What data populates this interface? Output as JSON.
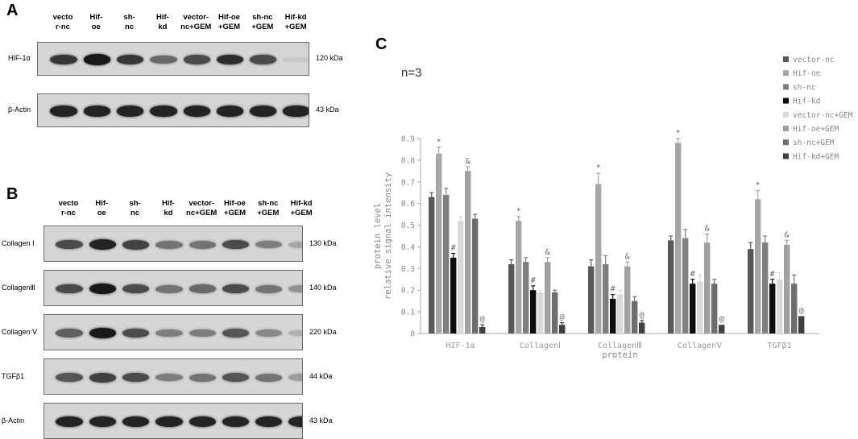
{
  "panel_a": {
    "letter": "A",
    "lanes": [
      "vecto\nr-nc",
      "Hif-\noe",
      "sh-\nnc",
      "Hif-\nkd",
      "vector-\nnc+GEM",
      "Hif-oe\n+GEM",
      "sh-nc\n+GEM",
      "Hif-kd\n+GEM"
    ],
    "blots": [
      {
        "label": "HIF-1α",
        "kda": "120 kDa",
        "intensity": [
          0.8,
          0.95,
          0.8,
          0.55,
          0.7,
          0.85,
          0.7,
          0.08
        ]
      },
      {
        "label": "β-Actin",
        "kda": "43 kDa",
        "intensity": [
          0.9,
          0.9,
          0.9,
          0.9,
          0.9,
          0.9,
          0.9,
          0.9
        ]
      }
    ]
  },
  "panel_b": {
    "letter": "B",
    "lanes": [
      "vecto\nr-nc",
      "Hif-\noe",
      "sh-\nnc",
      "Hif-\nkd",
      "vector-\nnc+GEM",
      "Hif-oe\n+GEM",
      "sh-nc\n+GEM",
      "Hif-kd\n+GEM"
    ],
    "blots": [
      {
        "label": "Collagen Ⅰ",
        "kda": "130 kDa",
        "intensity": [
          0.7,
          0.9,
          0.75,
          0.5,
          0.5,
          0.7,
          0.45,
          0.25
        ]
      },
      {
        "label": "CollagenⅢ",
        "kda": "140 kDa",
        "intensity": [
          0.7,
          0.95,
          0.7,
          0.5,
          0.55,
          0.7,
          0.5,
          0.35
        ]
      },
      {
        "label": "Collagen Ⅴ",
        "kda": "220 kDa",
        "intensity": [
          0.6,
          0.95,
          0.7,
          0.45,
          0.45,
          0.65,
          0.4,
          0.2
        ]
      },
      {
        "label": "TGFβ1",
        "kda": "44 kDa",
        "intensity": [
          0.65,
          0.75,
          0.7,
          0.45,
          0.5,
          0.65,
          0.5,
          0.3
        ]
      },
      {
        "label": "β-Actin",
        "kda": "43 kDa",
        "intensity": [
          0.9,
          0.9,
          0.9,
          0.9,
          0.9,
          0.9,
          0.9,
          0.9
        ]
      }
    ]
  },
  "panel_c": {
    "letter": "C",
    "note": "n=3"
  },
  "chart_data": {
    "type": "bar",
    "title": "",
    "xlabel": "protein",
    "ylabel_lines": [
      "protein level",
      "relative signal intensity"
    ],
    "ylim": [
      0,
      0.9
    ],
    "yticks": [
      "0",
      "0.1",
      "0.2",
      "0.3",
      "0.4",
      "0.5",
      "0.6",
      "0.7",
      "0.8",
      "0.9"
    ],
    "categories": [
      "HIF-1α",
      "CollagenⅠ",
      "CollagenⅢ",
      "CollagenⅤ",
      "TGFβ1"
    ],
    "legend_position": "top-right",
    "grid": false,
    "series": [
      {
        "name": "vector-nc",
        "color": "#595959",
        "values": [
          0.63,
          0.32,
          0.31,
          0.43,
          0.39
        ],
        "errors": [
          0.02,
          0.02,
          0.03,
          0.02,
          0.03
        ],
        "annotations": [
          "",
          "",
          "",
          "",
          ""
        ]
      },
      {
        "name": "Hif-oe",
        "color": "#a6a6a6",
        "values": [
          0.83,
          0.52,
          0.69,
          0.88,
          0.62
        ],
        "errors": [
          0.03,
          0.02,
          0.05,
          0.02,
          0.04
        ],
        "annotations": [
          "*",
          "*",
          "*",
          "*",
          "*"
        ]
      },
      {
        "name": "sh-nc",
        "color": "#7f7f7f",
        "values": [
          0.64,
          0.33,
          0.32,
          0.44,
          0.42
        ],
        "errors": [
          0.03,
          0.02,
          0.04,
          0.04,
          0.03
        ],
        "annotations": [
          "",
          "",
          "",
          "",
          ""
        ]
      },
      {
        "name": "Hif-kd",
        "color": "#0d0d0d",
        "values": [
          0.35,
          0.2,
          0.16,
          0.23,
          0.23
        ],
        "errors": [
          0.02,
          0.02,
          0.02,
          0.02,
          0.02
        ],
        "annotations": [
          "#",
          "#",
          "#",
          "#",
          "#"
        ]
      },
      {
        "name": "vector-nc+GEM",
        "color": "#d9d9d9",
        "values": [
          0.52,
          0.19,
          0.18,
          0.24,
          0.25
        ],
        "errors": [
          0.02,
          0.01,
          0.02,
          0.03,
          0.03
        ],
        "annotations": [
          "",
          "",
          "",
          "",
          ""
        ]
      },
      {
        "name": "Hif-oe+GEM",
        "color": "#a0a0a0",
        "values": [
          0.75,
          0.33,
          0.31,
          0.42,
          0.41
        ],
        "errors": [
          0.02,
          0.02,
          0.02,
          0.04,
          0.02
        ],
        "annotations": [
          "&",
          "&",
          "&",
          "&",
          "&"
        ]
      },
      {
        "name": "sh-nc+GEM",
        "color": "#6e6e6e",
        "values": [
          0.53,
          0.19,
          0.15,
          0.23,
          0.23
        ],
        "errors": [
          0.02,
          0.01,
          0.02,
          0.02,
          0.04
        ],
        "annotations": [
          "",
          "",
          "",
          "",
          ""
        ]
      },
      {
        "name": "Hif-kd+GEM",
        "color": "#404040",
        "values": [
          0.03,
          0.04,
          0.05,
          0.04,
          0.08
        ],
        "errors": [
          0.01,
          0.01,
          0.01,
          0.0,
          0.0
        ],
        "annotations": [
          "@",
          "@",
          "@",
          "@",
          "@"
        ]
      }
    ]
  }
}
